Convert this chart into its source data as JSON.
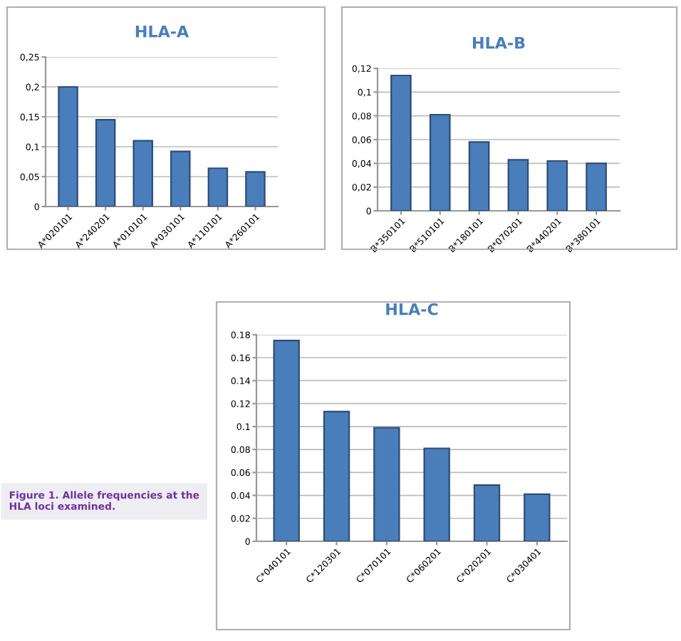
{
  "chart_data": [
    {
      "type": "bar",
      "title": "HLA-A",
      "categories": [
        "A*020101",
        "A*240201",
        "A*010101",
        "A*030101",
        "A*110101",
        "A*260101"
      ],
      "values": [
        0.2,
        0.145,
        0.11,
        0.092,
        0.064,
        0.058
      ],
      "color": "#4a7ebb",
      "ylim": [
        0,
        0.25
      ],
      "yticks": [
        {
          "value": 0,
          "label": "0"
        },
        {
          "value": 0.05,
          "label": "0,05"
        },
        {
          "value": 0.1,
          "label": "0,1"
        },
        {
          "value": 0.15,
          "label": "0,15"
        },
        {
          "value": 0.2,
          "label": "0,2"
        },
        {
          "value": 0.25,
          "label": "0,25"
        }
      ],
      "grid": "y"
    },
    {
      "type": "bar",
      "title": "HLA-B",
      "categories": [
        "B*350101",
        "B*510101",
        "B*180101",
        "B*070201",
        "B*440201",
        "B*380101"
      ],
      "values": [
        0.114,
        0.081,
        0.058,
        0.043,
        0.042,
        0.04
      ],
      "color": "#4a7ebb",
      "ylim": [
        0,
        0.12
      ],
      "yticks": [
        {
          "value": 0,
          "label": "0"
        },
        {
          "value": 0.02,
          "label": "0,02"
        },
        {
          "value": 0.04,
          "label": "0,04"
        },
        {
          "value": 0.06,
          "label": "0,06"
        },
        {
          "value": 0.08,
          "label": "0,08"
        },
        {
          "value": 0.1,
          "label": "0,1"
        },
        {
          "value": 0.12,
          "label": "0,12"
        }
      ],
      "grid": "y"
    },
    {
      "type": "bar",
      "title": "HLA-C",
      "categories": [
        "C*040101",
        "C*120301",
        "C*070101",
        "C*060201",
        "C*020201",
        "C*030401"
      ],
      "values": [
        0.175,
        0.113,
        0.099,
        0.081,
        0.049,
        0.041
      ],
      "color": "#4a7ebb",
      "ylim": [
        0,
        0.18
      ],
      "yticks": [
        0,
        0.02,
        0.04,
        0.06,
        0.08,
        0.1,
        0.12,
        0.14,
        0.16,
        0.18
      ],
      "grid": "y",
      "annotations": [
        "Figure 1. Allele frequencies at the HLA loci examined."
      ]
    }
  ]
}
